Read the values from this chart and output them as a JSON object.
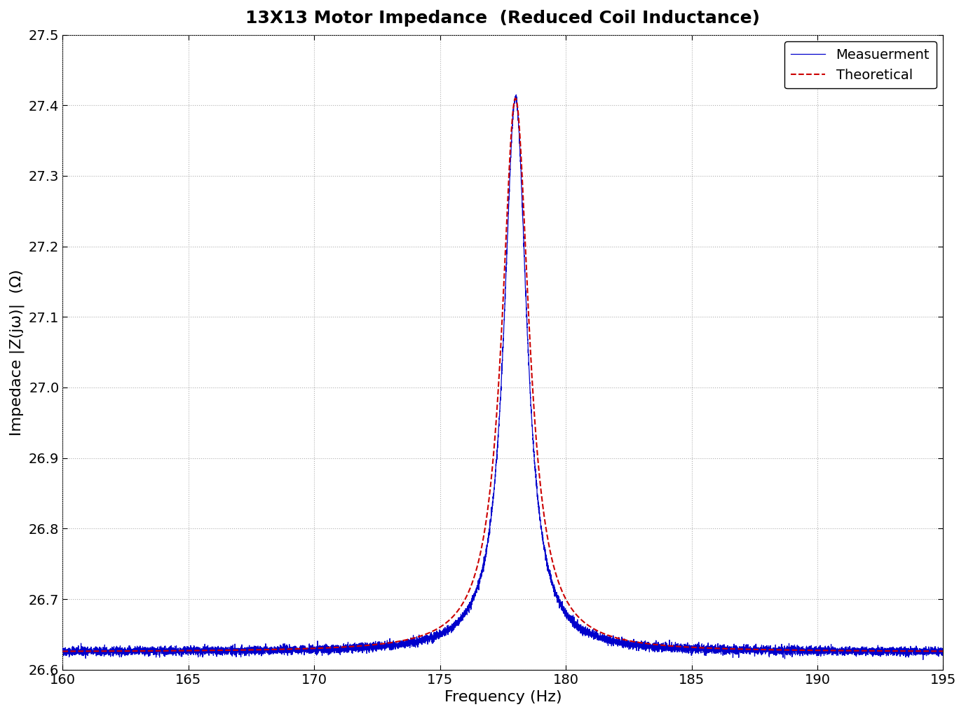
{
  "title": "13X13 Motor Impedance  (Reduced Coil Inductance)",
  "xlabel": "Frequency (Hz)",
  "ylabel": "Impedace |Z(jω)|  (Ω)",
  "xlim": [
    160,
    195
  ],
  "ylim": [
    26.6,
    27.5
  ],
  "yticks": [
    26.6,
    26.7,
    26.8,
    26.9,
    27.0,
    27.1,
    27.2,
    27.3,
    27.4,
    27.5
  ],
  "xticks": [
    160,
    165,
    170,
    175,
    180,
    185,
    190,
    195
  ],
  "resonance_freq": 178.0,
  "resonance_peak": 27.41,
  "base_impedance": 26.625,
  "bandwidth_meas": 0.55,
  "bandwidth_theo": 0.65,
  "meas_color": "#0000CC",
  "theo_color": "#CC0000",
  "legend_meas": "Measuerment",
  "legend_theo": "Theoretical",
  "title_fontsize": 18,
  "label_fontsize": 16,
  "tick_fontsize": 14,
  "legend_fontsize": 14,
  "noise_amplitude": 0.003,
  "noise_seed": 42,
  "fig_width": 13.78,
  "fig_height": 10.19,
  "dpi": 100
}
